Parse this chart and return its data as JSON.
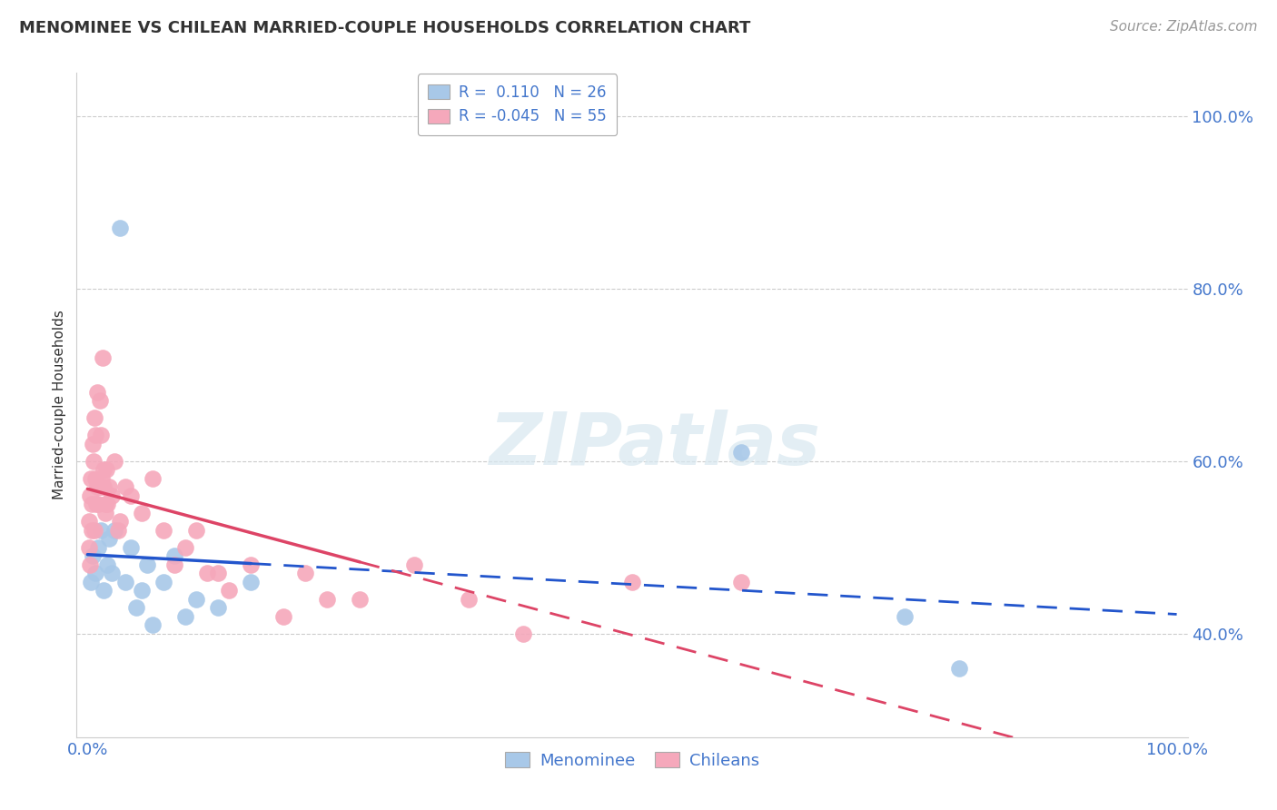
{
  "title": "MENOMINEE VS CHILEAN MARRIED-COUPLE HOUSEHOLDS CORRELATION CHART",
  "source": "Source: ZipAtlas.com",
  "ylabel": "Married-couple Households",
  "watermark": "ZIPatlas",
  "legend_menominee_R": " 0.110",
  "legend_menominee_N": "26",
  "legend_chileans_R": "-0.045",
  "legend_chileans_N": "55",
  "menominee_color": "#a8c8e8",
  "chilean_color": "#f5a8bb",
  "menominee_line_color": "#2255cc",
  "chilean_line_color": "#dd4466",
  "background_color": "#ffffff",
  "grid_color": "#cccccc",
  "text_color": "#333333",
  "axis_label_color": "#4477cc",
  "source_color": "#999999",
  "menominee_x": [
    0.3,
    0.5,
    0.7,
    1.0,
    1.2,
    1.5,
    1.8,
    2.0,
    2.2,
    2.5,
    3.0,
    3.5,
    4.0,
    4.5,
    5.0,
    5.5,
    6.0,
    7.0,
    8.0,
    9.0,
    10.0,
    12.0,
    15.0,
    60.0,
    75.0,
    80.0
  ],
  "menominee_y": [
    46.0,
    49.0,
    47.0,
    50.0,
    52.0,
    45.0,
    48.0,
    51.0,
    47.0,
    52.0,
    87.0,
    46.0,
    50.0,
    43.0,
    45.0,
    48.0,
    41.0,
    46.0,
    49.0,
    42.0,
    44.0,
    43.0,
    46.0,
    61.0,
    42.0,
    36.0
  ],
  "chilean_x": [
    0.1,
    0.15,
    0.2,
    0.25,
    0.3,
    0.4,
    0.5,
    0.6,
    0.7,
    0.8,
    0.9,
    1.0,
    1.1,
    1.2,
    1.3,
    1.4,
    1.5,
    1.6,
    1.7,
    1.8,
    2.0,
    2.2,
    2.5,
    3.0,
    3.5,
    4.0,
    5.0,
    6.0,
    7.0,
    8.0,
    9.0,
    10.0,
    11.0,
    12.0,
    13.0,
    15.0,
    18.0,
    20.0,
    22.0,
    25.0,
    30.0,
    35.0,
    40.0,
    50.0,
    60.0,
    0.35,
    0.55,
    0.65,
    0.75,
    0.85,
    1.05,
    1.25,
    1.45,
    1.65,
    2.8
  ],
  "chilean_y": [
    50.0,
    53.0,
    56.0,
    48.0,
    58.0,
    52.0,
    62.0,
    65.0,
    63.0,
    55.0,
    57.0,
    55.0,
    67.0,
    63.0,
    58.0,
    72.0,
    57.0,
    54.0,
    59.0,
    55.0,
    57.0,
    56.0,
    60.0,
    53.0,
    57.0,
    56.0,
    54.0,
    58.0,
    52.0,
    48.0,
    50.0,
    52.0,
    47.0,
    47.0,
    45.0,
    48.0,
    42.0,
    47.0,
    44.0,
    44.0,
    48.0,
    44.0,
    40.0,
    46.0,
    46.0,
    55.0,
    60.0,
    52.0,
    58.0,
    68.0,
    57.0,
    57.0,
    59.0,
    55.0,
    52.0
  ],
  "xmin": 0.0,
  "xmax": 100.0,
  "ymin": 28.0,
  "ymax": 105.0,
  "yticks": [
    40.0,
    60.0,
    80.0,
    100.0
  ],
  "xtick_positions": [
    0.0,
    100.0
  ]
}
